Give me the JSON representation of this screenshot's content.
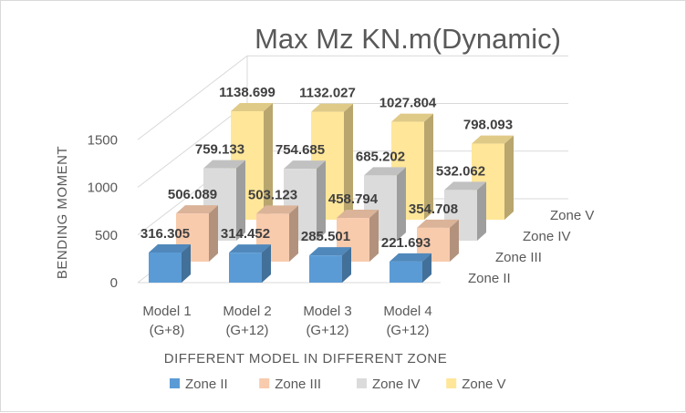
{
  "chart_data": {
    "type": "bar",
    "variant": "3d-clustered-column",
    "title": "Max Mz KN.m(Dynamic)",
    "xlabel": "DIFFERENT MODEL IN DIFFERENT ZONE",
    "ylabel": "BENDING MOMENT",
    "ylim": [
      0,
      1500
    ],
    "yticks": [
      0,
      500,
      1000,
      1500
    ],
    "grid": true,
    "legend_position": "bottom",
    "categories": [
      [
        "Model 1",
        "(G+8)"
      ],
      [
        "Model 2",
        "(G+12)"
      ],
      [
        "Model 3",
        "(G+12)"
      ],
      [
        "Model 4",
        "(G+12)"
      ]
    ],
    "series": [
      {
        "name": "Zone II",
        "color": "#5b9bd5",
        "values": [
          316.305,
          314.452,
          285.501,
          221.693
        ]
      },
      {
        "name": "Zone III",
        "color": "#f8cbad",
        "values": [
          506.089,
          503.123,
          458.794,
          354.708
        ]
      },
      {
        "name": "Zone IV",
        "color": "#dbdbdb",
        "values": [
          759.133,
          754.685,
          685.202,
          532.062
        ]
      },
      {
        "name": "Zone V",
        "color": "#ffe699",
        "values": [
          1138.699,
          1132.027,
          1027.804,
          798.093
        ]
      }
    ]
  }
}
